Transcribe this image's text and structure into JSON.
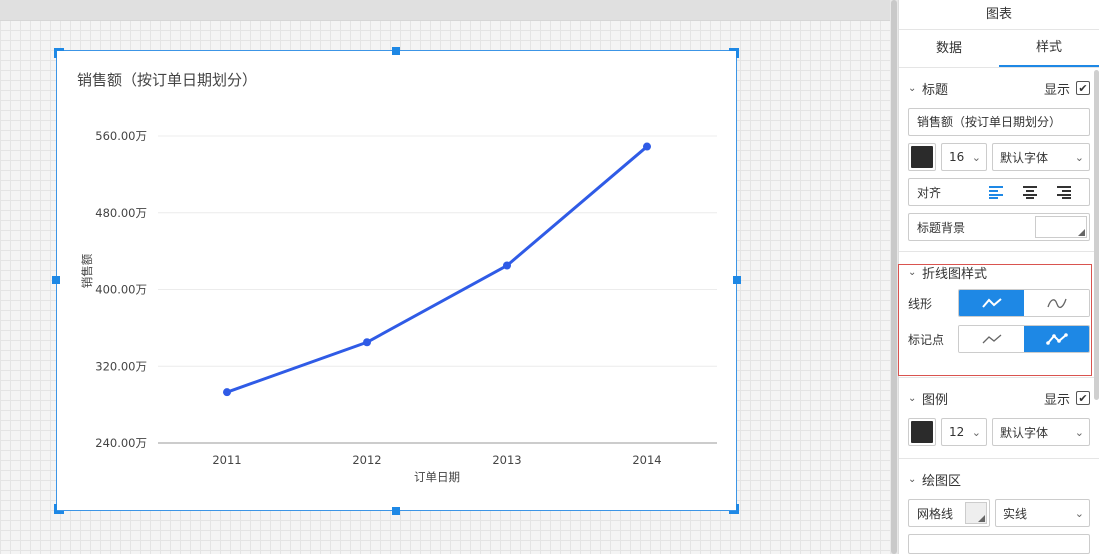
{
  "panel": {
    "title": "图表",
    "tabs": [
      {
        "label": "数据",
        "active": false
      },
      {
        "label": "样式",
        "active": true
      }
    ]
  },
  "title_section": {
    "heading": "标题",
    "show_label": "显示",
    "show_checked": true,
    "title_value": "销售额（按订单日期划分）",
    "font_color": "#2b2b2b",
    "font_size": "16",
    "font_family": "默认字体",
    "align_label": "对齐",
    "align_selected": "left",
    "bg_label": "标题背景"
  },
  "line_section": {
    "heading": "折线图样式",
    "line_shape_label": "线形",
    "line_shape_selected": "straight",
    "marker_label": "标记点",
    "marker_selected": "with-markers"
  },
  "legend_section": {
    "heading": "图例",
    "show_label": "显示",
    "show_checked": true,
    "font_color": "#2b2b2b",
    "font_size": "12",
    "font_family": "默认字体"
  },
  "plot_section": {
    "heading": "绘图区",
    "grid_label": "网格线",
    "grid_style": "实线"
  },
  "colors": {
    "accent": "#1e88e5",
    "line": "#2f5be6",
    "selection_border": "#d9534f"
  },
  "chart_data": {
    "type": "line",
    "title": "销售额（按订单日期划分）",
    "xlabel": "订单日期",
    "ylabel": "销售额",
    "categories": [
      "2011",
      "2012",
      "2013",
      "2014"
    ],
    "series": [
      {
        "values": [
          2930000,
          3450000,
          4250000,
          5490000
        ]
      }
    ],
    "yticks": [
      2400000,
      3200000,
      4000000,
      4800000,
      5600000
    ],
    "ytick_labels": [
      "240.00万",
      "320.00万",
      "400.00万",
      "480.00万",
      "560.00万"
    ],
    "ylim": [
      2400000,
      5600000
    ],
    "grid": true,
    "markers": true
  }
}
